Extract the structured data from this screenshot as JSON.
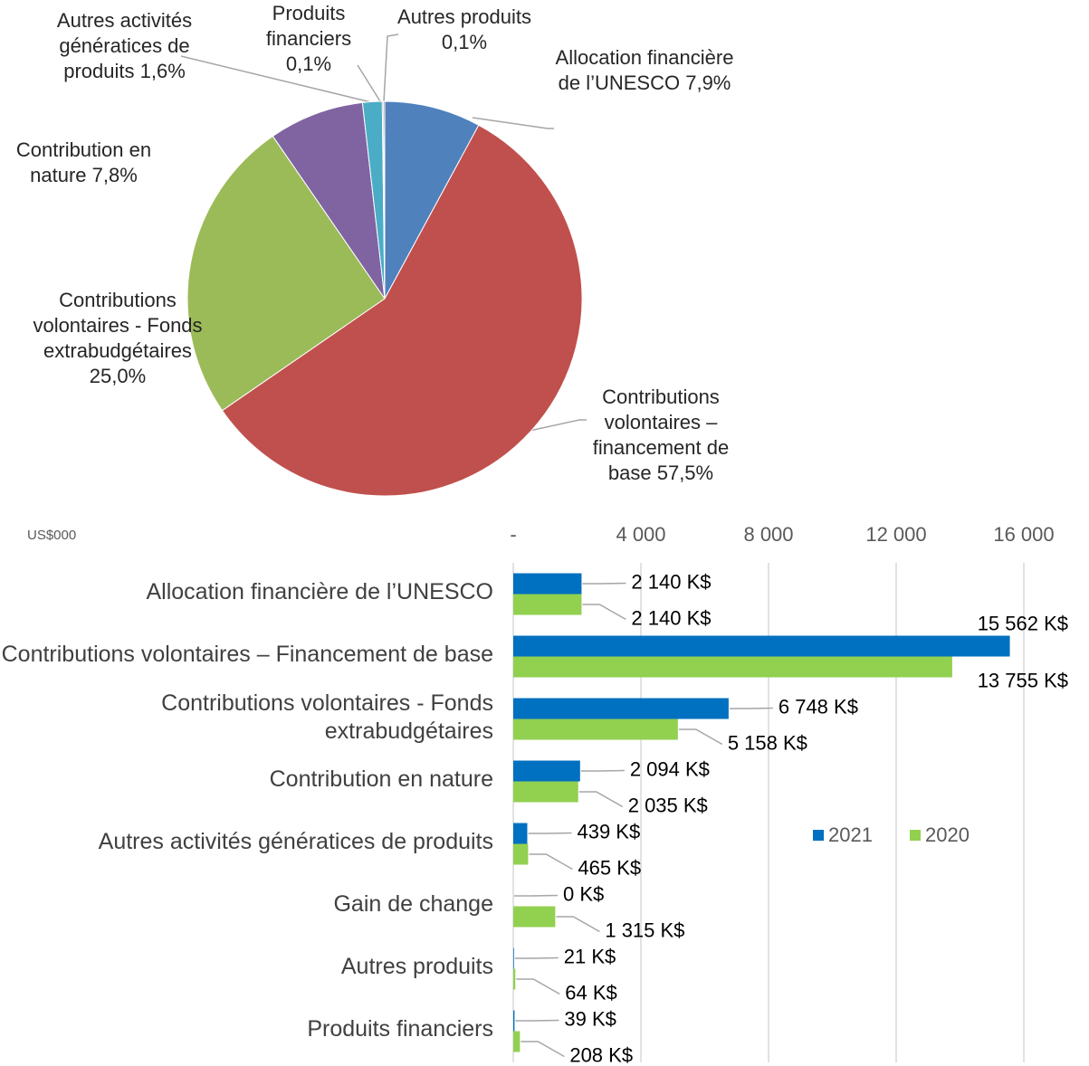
{
  "chart_data": [
    {
      "type": "pie",
      "categories": [
        "Allocation financière de l’UNESCO",
        "Contributions volontaires – financement de base",
        "Contributions volontaires - Fonds extrabudgétaires",
        "Contribution en nature",
        "Autres activités génératices de produits",
        "Produits financiers",
        "Autres produits"
      ],
      "values": [
        7.9,
        57.5,
        25.0,
        7.8,
        1.6,
        0.1,
        0.1
      ],
      "value_labels": [
        "7,9%",
        "57,5%",
        "25,0%",
        "7,8%",
        "1,6%",
        "0,1%",
        "0,1%"
      ],
      "colors": [
        "#4f81bd",
        "#c0504d",
        "#9bbb59",
        "#8064a2",
        "#4bacc6",
        "#2c4d75",
        "#772c2a"
      ]
    },
    {
      "type": "barh",
      "unit_label": "US$000",
      "categories": [
        "Allocation financière de l’UNESCO",
        "Contributions volontaires – Financement de base",
        "Contributions volontaires - Fonds extrabudgétaires",
        "Contribution en nature",
        "Autres activités génératices de produits",
        "Gain de change",
        "Autres produits",
        "Produits financiers"
      ],
      "series": [
        {
          "name": "2021",
          "color": "#0070c0",
          "values": [
            2140,
            15562,
            6748,
            2094,
            439,
            0,
            21,
            39
          ],
          "value_labels": [
            "2 140 K$",
            "15 562 K$",
            "6 748 K$",
            "2 094 K$",
            "439 K$",
            "0 K$",
            "21 K$",
            "39 K$"
          ]
        },
        {
          "name": "2020",
          "color": "#92d050",
          "values": [
            2140,
            13755,
            5158,
            2035,
            465,
            1315,
            64,
            208
          ],
          "value_labels": [
            "2 140 K$",
            "13 755 K$",
            "5 158 K$",
            "2 035 K$",
            "465 K$",
            "1 315 K$",
            "64 K$",
            "208 K$"
          ]
        }
      ],
      "xlim": [
        0,
        16000
      ],
      "xticks": [
        {
          "value": 0,
          "label": "-"
        },
        {
          "value": 4000,
          "label": "4 000"
        },
        {
          "value": 8000,
          "label": "8 000"
        },
        {
          "value": 12000,
          "label": "12 000"
        },
        {
          "value": 16000,
          "label": "16 000"
        }
      ],
      "grid": true,
      "legend": "right"
    }
  ]
}
